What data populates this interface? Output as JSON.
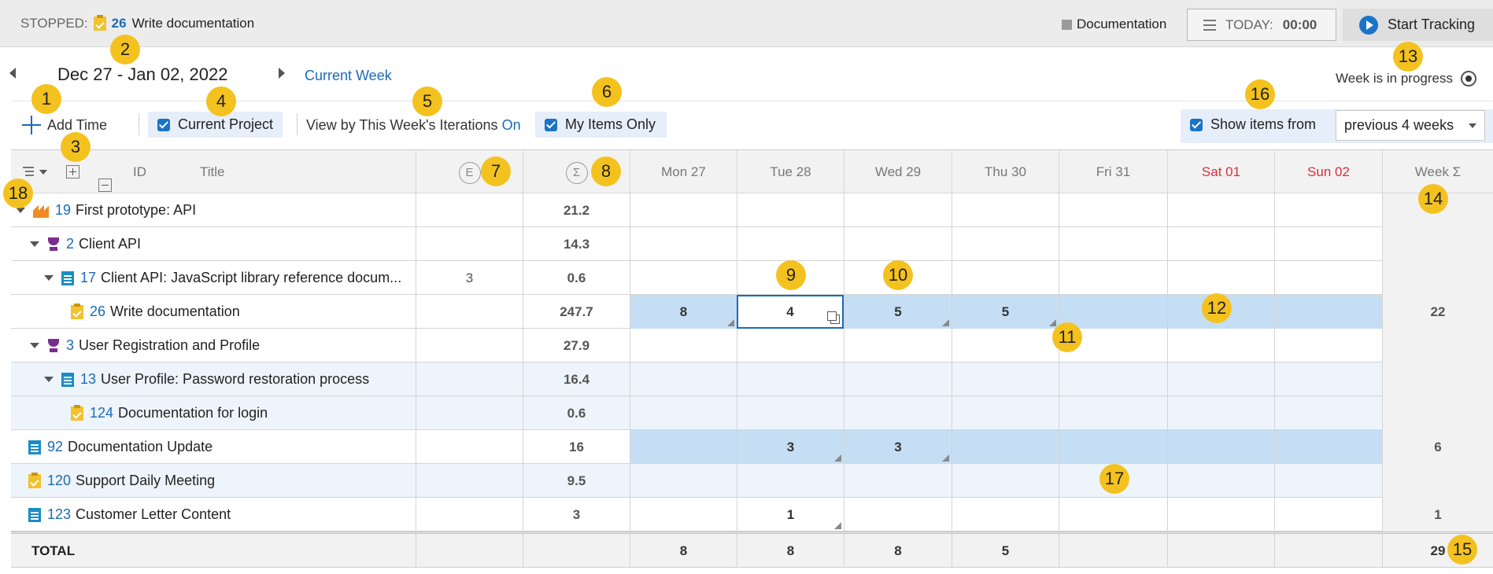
{
  "status": {
    "state_label": "STOPPED:",
    "task_id": "26",
    "task_title": "Write documentation",
    "activity": "Documentation",
    "today_label": "TODAY:",
    "today_value": "00:00",
    "start_label": "Start Tracking"
  },
  "nav": {
    "date_range": "Dec 27 - Jan 02, 2022",
    "current_week": "Current Week",
    "progress_label": "Week is in progress"
  },
  "toolbar": {
    "add_time": "Add Time",
    "current_project": "Current Project",
    "view_by": "View by This Week's Iterations",
    "view_by_state": "On",
    "my_items_only": "My Items Only",
    "show_items_from": "Show items from",
    "show_items_period": "previous 4 weeks"
  },
  "columns": {
    "id": "ID",
    "title": "Title",
    "estimate": "E",
    "sum": "Σ",
    "days": [
      {
        "label": "Mon 27",
        "weekend": false
      },
      {
        "label": "Tue 28",
        "weekend": false
      },
      {
        "label": "Wed 29",
        "weekend": false
      },
      {
        "label": "Thu 30",
        "weekend": false
      },
      {
        "label": "Fri 31",
        "weekend": false
      },
      {
        "label": "Sat 01",
        "weekend": true
      },
      {
        "label": "Sun 02",
        "weekend": true
      }
    ],
    "week": "Week Σ"
  },
  "rows": [
    {
      "id": "19",
      "title": "First prototype: API",
      "icon": "crown-icon",
      "depth": 0,
      "toggle": true,
      "estimate": "",
      "sum": "21.2",
      "days": [
        "",
        "",
        "",
        "",
        "",
        "",
        ""
      ],
      "week": "",
      "hl": false,
      "blue": false
    },
    {
      "id": "2",
      "title": "Client API",
      "icon": "trophy-icon",
      "depth": 1,
      "toggle": true,
      "estimate": "",
      "sum": "14.3",
      "days": [
        "",
        "",
        "",
        "",
        "",
        "",
        ""
      ],
      "week": "",
      "hl": false,
      "blue": false
    },
    {
      "id": "17",
      "title": "Client API: JavaScript library reference docum...",
      "icon": "document-icon",
      "depth": 2,
      "toggle": true,
      "estimate": "3",
      "sum": "0.6",
      "days": [
        "",
        "",
        "",
        "",
        "",
        "",
        ""
      ],
      "week": "",
      "hl": false,
      "blue": false
    },
    {
      "id": "26",
      "title": "Write documentation",
      "icon": "task-icon",
      "depth": 3,
      "toggle": false,
      "estimate": "",
      "sum": "247.7",
      "days": [
        "8",
        "4",
        "5",
        "5",
        "",
        "",
        ""
      ],
      "week": "22",
      "hl": false,
      "blue": true
    },
    {
      "id": "3",
      "title": "User Registration and Profile",
      "icon": "trophy-icon",
      "depth": 1,
      "toggle": true,
      "estimate": "",
      "sum": "27.9",
      "days": [
        "",
        "",
        "",
        "",
        "",
        "",
        ""
      ],
      "week": "",
      "hl": false,
      "blue": false
    },
    {
      "id": "13",
      "title": "User Profile: Password restoration process",
      "icon": "document-icon",
      "depth": 2,
      "toggle": true,
      "estimate": "",
      "sum": "16.4",
      "days": [
        "",
        "",
        "",
        "",
        "",
        "",
        ""
      ],
      "week": "",
      "hl": true,
      "blue": false
    },
    {
      "id": "124",
      "title": "Documentation for login",
      "icon": "task-icon",
      "depth": 3,
      "toggle": false,
      "estimate": "",
      "sum": "0.6",
      "days": [
        "",
        "",
        "",
        "",
        "",
        "",
        ""
      ],
      "week": "",
      "hl": true,
      "blue": false
    },
    {
      "id": "92",
      "title": "Documentation Update",
      "icon": "document-icon",
      "depth": 0,
      "toggle": false,
      "estimate": "",
      "sum": "16",
      "days": [
        "",
        "3",
        "3",
        "",
        "",
        "",
        ""
      ],
      "week": "6",
      "hl": false,
      "blue": true
    },
    {
      "id": "120",
      "title": "Support Daily Meeting",
      "icon": "task-icon",
      "depth": 0,
      "toggle": false,
      "estimate": "",
      "sum": "9.5",
      "days": [
        "",
        "",
        "",
        "",
        "",
        "",
        ""
      ],
      "week": "",
      "hl": true,
      "blue": false
    },
    {
      "id": "123",
      "title": "Customer Letter Content",
      "icon": "document-icon",
      "depth": 0,
      "toggle": false,
      "estimate": "",
      "sum": "3",
      "days": [
        "",
        "1",
        "",
        "",
        "",
        "",
        ""
      ],
      "week": "1",
      "hl": false,
      "blue": false
    }
  ],
  "total": {
    "label": "TOTAL",
    "days": [
      "8",
      "8",
      "8",
      "5",
      "",
      "",
      ""
    ],
    "week": "29"
  },
  "callouts": [
    "1",
    "2",
    "3",
    "4",
    "5",
    "6",
    "7",
    "8",
    "9",
    "10",
    "11",
    "12",
    "13",
    "14",
    "15",
    "16",
    "17",
    "18"
  ],
  "colors": {
    "accent": "#1a6bb5",
    "badge": "#f4c21f",
    "weekend": "#d9303a",
    "logged_row": "#c5def4",
    "highlight_row": "#eef4fb"
  }
}
